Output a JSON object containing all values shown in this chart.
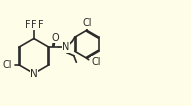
{
  "bg_color": "#fefde8",
  "bond_color": "#2a2a2a",
  "atom_colors": {
    "C": "#2a2a2a",
    "N": "#2a2a2a",
    "O": "#2a2a2a",
    "Cl": "#2a2a2a",
    "F": "#2a2a2a"
  },
  "font_size": 7,
  "line_width": 1.2
}
